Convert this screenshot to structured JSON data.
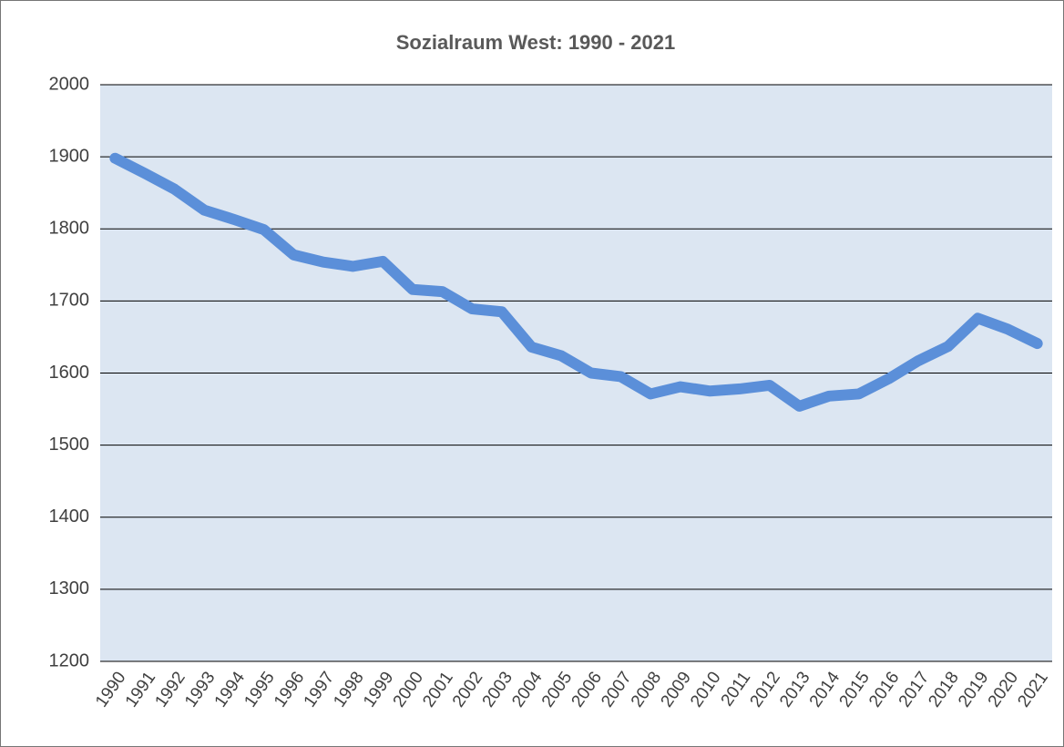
{
  "chart_data": {
    "type": "line",
    "title": "Sozialraum  West: 1990 - 2021",
    "categories": [
      "1990",
      "1991",
      "1992",
      "1993",
      "1994",
      "1995",
      "1996",
      "1997",
      "1998",
      "1999",
      "2000",
      "2001",
      "2002",
      "2003",
      "2004",
      "2005",
      "2006",
      "2007",
      "2008",
      "2009",
      "2010",
      "2011",
      "2012",
      "2013",
      "2014",
      "2015",
      "2016",
      "2017",
      "2018",
      "2019",
      "2020",
      "2021"
    ],
    "values": [
      1898,
      1877,
      1855,
      1826,
      1813,
      1799,
      1764,
      1754,
      1748,
      1755,
      1716,
      1713,
      1689,
      1685,
      1636,
      1624,
      1600,
      1595,
      1571,
      1581,
      1575,
      1578,
      1583,
      1554,
      1568,
      1571,
      1592,
      1617,
      1637,
      1676,
      1661,
      1641
    ],
    "color": "#5b8fd9",
    "plot_background": "#dce6f2",
    "ylim": [
      1200,
      2000
    ],
    "yticks": [
      1200,
      1300,
      1400,
      1500,
      1600,
      1700,
      1800,
      1900,
      2000
    ],
    "grid": true
  }
}
